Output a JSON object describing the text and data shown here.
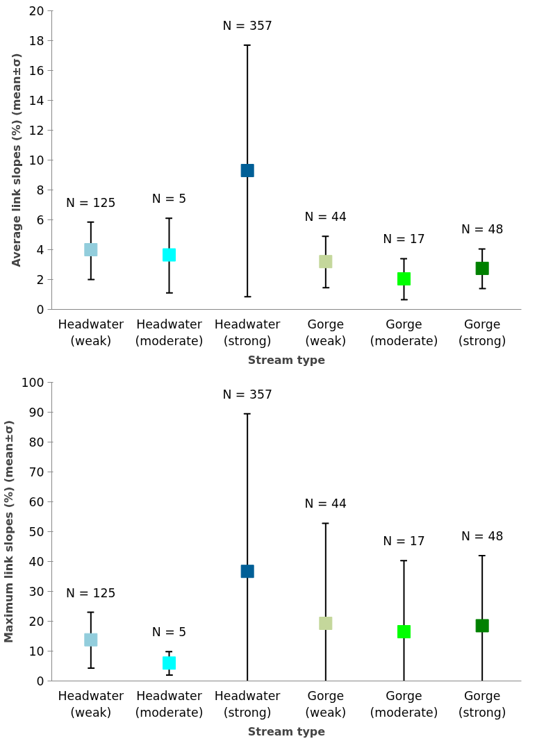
{
  "chart_data": [
    {
      "type": "scatter",
      "ylabel": "Average link slopes (%) (mean±σ)",
      "xlabel": "Stream type",
      "categories": [
        "Headwater\n(weak)",
        "Headwater\n(moderate)",
        "Headwater\n(strong)",
        "Gorge\n(weak)",
        "Gorge\n(moderate)",
        "Gorge\n(strong)"
      ],
      "values": [
        4.0,
        3.65,
        9.3,
        3.2,
        2.05,
        2.75
      ],
      "colors": [
        "#92cddc",
        "#00ffff",
        "#005f97",
        "#c4d79b",
        "#00ff00",
        "#008000"
      ],
      "errors": [
        [
          2.0,
          5.85
        ],
        [
          1.1,
          6.1
        ],
        [
          0.85,
          17.7
        ],
        [
          1.45,
          4.9
        ],
        [
          0.65,
          3.4
        ],
        [
          1.4,
          4.05
        ]
      ],
      "ylim": [
        0,
        20
      ],
      "yticks": [
        0,
        2,
        4,
        6,
        8,
        10,
        12,
        14,
        16,
        18,
        20
      ],
      "marker": "square",
      "grid": false,
      "annotations": [
        "N = 125",
        "N = 5",
        "N = 357",
        "N = 44",
        "N = 17",
        "N = 48"
      ]
    },
    {
      "type": "scatter",
      "ylabel": "Maximum link slopes (%) (mean±σ)",
      "xlabel": "Stream type",
      "categories": [
        "Headwater\n(weak)",
        "Headwater\n(moderate)",
        "Headwater\n(strong)",
        "Gorge\n(weak)",
        "Gorge\n(moderate)",
        "Gorge\n(strong)"
      ],
      "values": [
        13.8,
        6.0,
        36.7,
        19.3,
        16.5,
        18.5
      ],
      "colors": [
        "#92cddc",
        "#00ffff",
        "#005f97",
        "#c4d79b",
        "#00ff00",
        "#008000"
      ],
      "errors": [
        [
          4.3,
          23.0
        ],
        [
          2.0,
          9.8
        ],
        [
          0,
          89.5
        ],
        [
          0,
          52.8
        ],
        [
          0,
          40.3
        ],
        [
          0,
          42.0
        ]
      ],
      "ylim": [
        0,
        100
      ],
      "yticks": [
        0,
        10,
        20,
        30,
        40,
        50,
        60,
        70,
        80,
        90,
        100
      ],
      "marker": "square",
      "grid": false,
      "annotations": [
        "N = 125",
        "N = 5",
        "N = 357",
        "N = 44",
        "N = 17",
        "N = 48"
      ]
    }
  ]
}
